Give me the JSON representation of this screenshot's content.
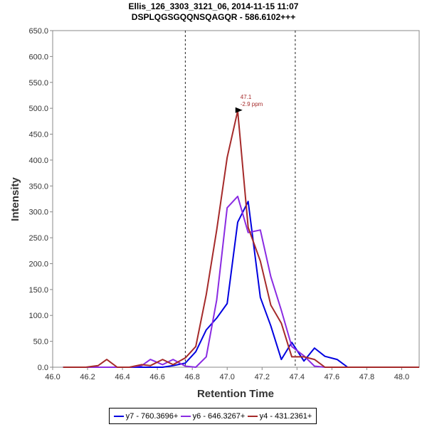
{
  "chart_data": {
    "type": "line",
    "title": "Ellis_126_3303_3121_06, 2014-11-15 11:07",
    "subtitle": "DSPLQGSGQQNSQAGQR - 586.6102+++",
    "xlabel": "Retention Time",
    "ylabel": "Intensity",
    "xlim": [
      46.0,
      48.1
    ],
    "ylim": [
      0,
      650
    ],
    "x_ticks": [
      "46.0",
      "46.2",
      "46.4",
      "46.6",
      "46.8",
      "47.0",
      "47.2",
      "47.4",
      "47.6",
      "47.8",
      "48.0"
    ],
    "y_ticks": [
      "0.0",
      "50.0",
      "100.0",
      "150.0",
      "200.0",
      "250.0",
      "300.0",
      "350.0",
      "400.0",
      "450.0",
      "500.0",
      "550.0",
      "600.0",
      "650.0"
    ],
    "vlines": [
      46.76,
      47.39
    ],
    "x": [
      46.06,
      46.13,
      46.19,
      46.26,
      46.31,
      46.37,
      46.44,
      46.51,
      46.56,
      46.63,
      46.69,
      46.76,
      46.82,
      46.88,
      46.94,
      47.0,
      47.06,
      47.12,
      47.19,
      47.25,
      47.31,
      47.37,
      47.44,
      47.5,
      47.56,
      47.63,
      47.69,
      47.75,
      47.82,
      47.88,
      47.94,
      48.0,
      48.06,
      48.1
    ],
    "series": [
      {
        "name": "y7 - 760.3696+",
        "color": "#0000e0",
        "values": [
          0,
          0,
          0,
          0,
          0,
          0,
          0,
          0,
          0,
          0,
          3,
          8,
          30,
          72,
          95,
          123,
          280,
          320,
          135,
          80,
          15,
          48,
          12,
          37,
          21,
          15,
          0,
          0,
          0,
          0,
          0,
          0,
          0,
          0
        ]
      },
      {
        "name": "y6 - 646.3267+",
        "color": "#8a2be2",
        "values": [
          0,
          0,
          0,
          0,
          0,
          0,
          0,
          3,
          15,
          5,
          15,
          2,
          0,
          20,
          130,
          308,
          330,
          260,
          265,
          175,
          110,
          40,
          22,
          2,
          0,
          0,
          0,
          0,
          0,
          0,
          0,
          0,
          0,
          0
        ]
      },
      {
        "name": "y4 - 431.2361+",
        "color": "#a52a2a",
        "values": [
          0,
          0,
          0,
          3,
          15,
          0,
          0,
          5,
          3,
          15,
          5,
          18,
          40,
          140,
          265,
          405,
          495,
          270,
          205,
          120,
          85,
          20,
          20,
          15,
          0,
          0,
          0,
          0,
          0,
          0,
          0,
          0,
          0,
          0
        ]
      }
    ],
    "annotations": [
      {
        "x": 47.1,
        "y": 495,
        "series": "y4 - 431.2361+",
        "lines": [
          "47.1",
          "-2.9 ppm"
        ]
      }
    ]
  }
}
